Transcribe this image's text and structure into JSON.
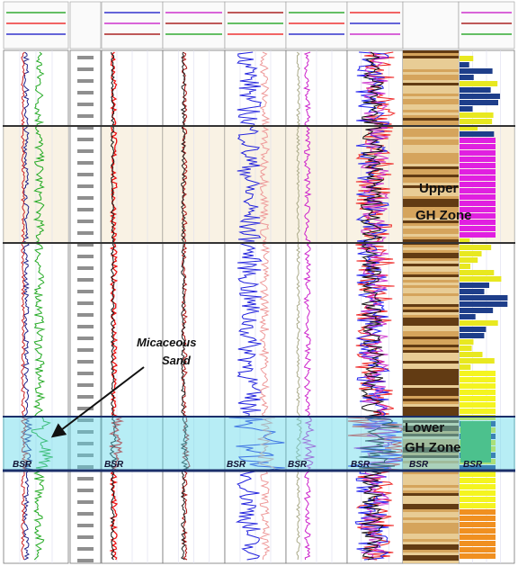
{
  "annotations": {
    "micaceous": [
      "Micaceous",
      "Sand"
    ],
    "upper_zone": [
      "Upper",
      "GH Zone"
    ],
    "lower_zone": [
      "Lower",
      "GH Zone"
    ],
    "bsr_labels": [
      "BSR",
      "BSR",
      "BSR",
      "BSR",
      "BSR",
      "BSR",
      "BSR"
    ]
  }
}
